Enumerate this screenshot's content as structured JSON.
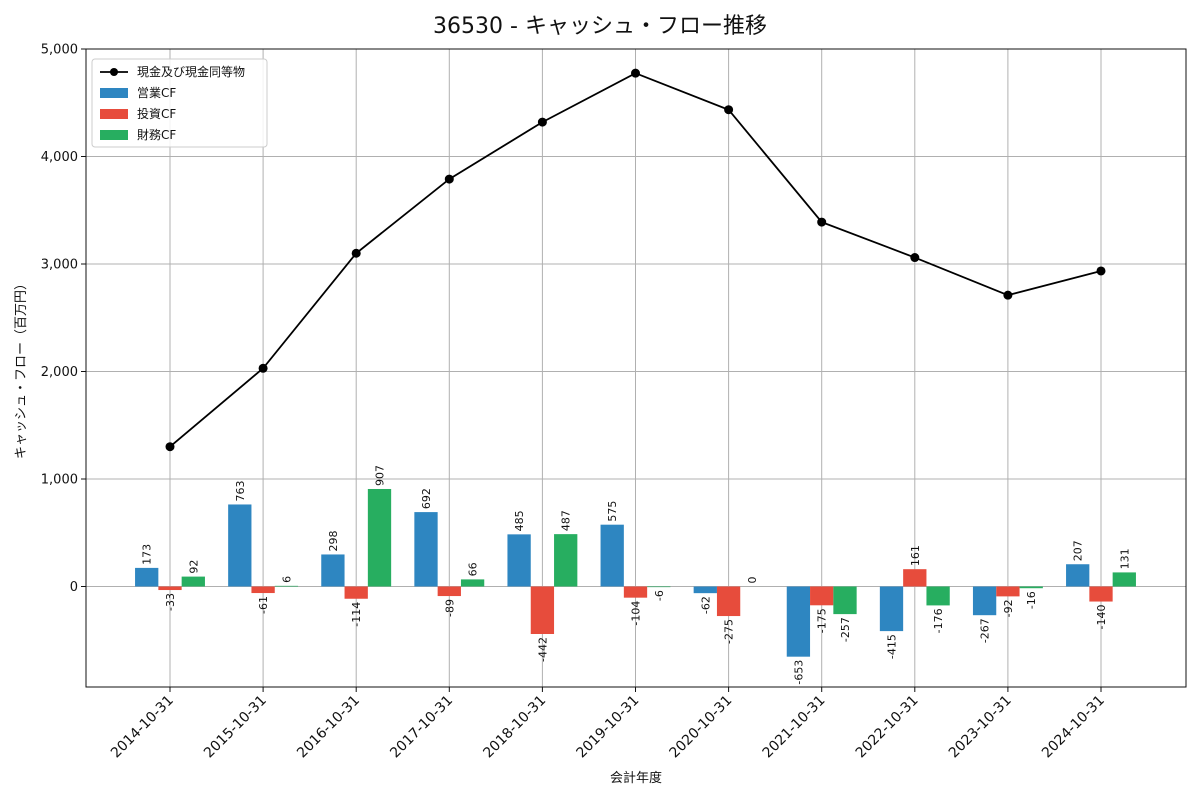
{
  "chart_data": {
    "type": "bar",
    "title": "36530 - キャッシュ・フロー推移",
    "xlabel": "会計年度",
    "ylabel": "キャッシュ・フロー（百万円）",
    "ylim": [
      -935,
      5000
    ],
    "yticks": [
      0,
      1000,
      2000,
      3000,
      4000,
      5000
    ],
    "ytick_labels": [
      "0",
      "1,000",
      "2,000",
      "3,000",
      "4,000",
      "5,000"
    ],
    "grid": true,
    "legend_position": "top-left",
    "categories": [
      "2014-10-31",
      "2015-10-31",
      "2016-10-31",
      "2017-10-31",
      "2018-10-31",
      "2019-10-31",
      "2020-10-31",
      "2021-10-31",
      "2022-10-31",
      "2023-10-31",
      "2024-10-31"
    ],
    "line": {
      "name": "現金及び現金同等物",
      "color": "#000000",
      "values": [
        1300,
        2030,
        3100,
        3790,
        4320,
        4775,
        4435,
        3390,
        3060,
        2710,
        2935
      ]
    },
    "series": [
      {
        "name": "営業CF",
        "color": "#2e86c1",
        "values": [
          173,
          763,
          298,
          692,
          485,
          575,
          -62,
          -653,
          -415,
          -267,
          207
        ]
      },
      {
        "name": "投資CF",
        "color": "#e74c3c",
        "values": [
          -33,
          -61,
          -114,
          -89,
          -442,
          -104,
          -275,
          -175,
          161,
          -92,
          -140
        ]
      },
      {
        "name": "財務CF",
        "color": "#27ae60",
        "values": [
          92,
          6,
          907,
          66,
          487,
          -6,
          0,
          -257,
          -176,
          -16,
          131
        ]
      }
    ]
  }
}
